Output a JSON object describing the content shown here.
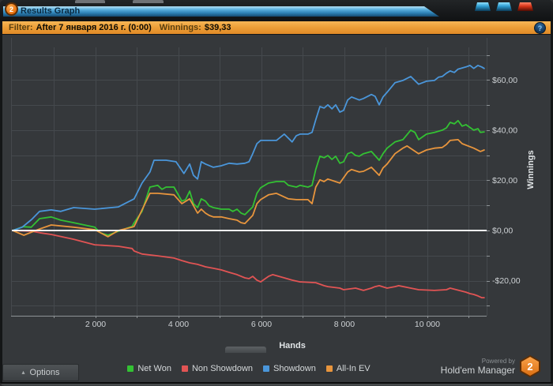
{
  "window": {
    "title": "Results Graph",
    "badge": "2",
    "controls": [
      "minimize-button",
      "maximize-button",
      "close-button"
    ]
  },
  "filter_bar": {
    "filter_label": "Filter:",
    "filter_value": "After 7 января 2016 г. (0:00)",
    "winnings_label": "Winnings:",
    "winnings_value": "$39,33",
    "info_glyph": "?"
  },
  "footer": {
    "options_arrow": "▴",
    "options_label": "Options",
    "powered_by": "Powered by",
    "brand": "Hold'em Manager",
    "brand_badge": "2"
  },
  "colors": {
    "net_won": "#33c133",
    "non_showdown": "#e15454",
    "showdown": "#4a96da",
    "all_in_ev": "#e8953d",
    "zero_line": "#f5f6f6",
    "grid": "#45494d",
    "axis": "#8e9396",
    "tick_text": "#cdd1d4",
    "axis_title": "#e0e4e6",
    "chart_bg": "#35383b",
    "filter_bar_bg": "#eda039",
    "title_bar_blue": "#2e82b6"
  },
  "chart_data": {
    "type": "line",
    "title": "",
    "xlabel": "Hands",
    "ylabel": "Winnings",
    "xlim": [
      0,
      11430
    ],
    "ylim": [
      -34,
      73
    ],
    "grid": {
      "x_step": 1000,
      "y_step": 10
    },
    "zero_line": true,
    "legend_position": "bottom",
    "x_ticks": [
      {
        "value": 2000,
        "label": "2 000"
      },
      {
        "value": 4000,
        "label": "4 000"
      },
      {
        "value": 6000,
        "label": "6 000"
      },
      {
        "value": 8000,
        "label": "8 000"
      },
      {
        "value": 10000,
        "label": "10 000"
      }
    ],
    "y_ticks": [
      {
        "value": 60,
        "label": "$60,00"
      },
      {
        "value": 40,
        "label": "$40,00"
      },
      {
        "value": 20,
        "label": "$20,00"
      },
      {
        "value": 0,
        "label": "$0,00"
      },
      {
        "value": -20,
        "label": "-$20,00"
      }
    ],
    "series": [
      {
        "name": "Net Won",
        "color": "#33c133",
        "points": [
          [
            0,
            0
          ],
          [
            250,
            1.5
          ],
          [
            450,
            1.3
          ],
          [
            650,
            4.7
          ],
          [
            930,
            5.4
          ],
          [
            1160,
            4.1
          ],
          [
            1470,
            3.1
          ],
          [
            1730,
            2.2
          ],
          [
            1980,
            1.3
          ],
          [
            2110,
            -0.9
          ],
          [
            2300,
            -1.9
          ],
          [
            2550,
            -0.3
          ],
          [
            2880,
            1.6
          ],
          [
            2930,
            3.1
          ],
          [
            3120,
            7.6
          ],
          [
            3310,
            17.3
          ],
          [
            3500,
            18
          ],
          [
            3600,
            16.4
          ],
          [
            3700,
            17.3
          ],
          [
            3890,
            17.3
          ],
          [
            4080,
            11.7
          ],
          [
            4170,
            12.3
          ],
          [
            4270,
            15.7
          ],
          [
            4360,
            10.7
          ],
          [
            4460,
            9.1
          ],
          [
            4550,
            12.6
          ],
          [
            4650,
            11.7
          ],
          [
            4740,
            9.8
          ],
          [
            4840,
            9.1
          ],
          [
            5030,
            8.5
          ],
          [
            5220,
            8.5
          ],
          [
            5310,
            7.6
          ],
          [
            5410,
            8.5
          ],
          [
            5510,
            6.9
          ],
          [
            5600,
            6.3
          ],
          [
            5790,
            9.4
          ],
          [
            5890,
            14.8
          ],
          [
            5980,
            17
          ],
          [
            6170,
            18.9
          ],
          [
            6360,
            19.5
          ],
          [
            6550,
            19.5
          ],
          [
            6650,
            18
          ],
          [
            6840,
            17.3
          ],
          [
            6930,
            18
          ],
          [
            7120,
            17.3
          ],
          [
            7220,
            18
          ],
          [
            7310,
            24.3
          ],
          [
            7410,
            29.6
          ],
          [
            7510,
            29
          ],
          [
            7600,
            29.9
          ],
          [
            7700,
            28.3
          ],
          [
            7790,
            29.6
          ],
          [
            7890,
            26.8
          ],
          [
            7980,
            27.4
          ],
          [
            8080,
            30.6
          ],
          [
            8170,
            31.2
          ],
          [
            8270,
            29.9
          ],
          [
            8360,
            29.6
          ],
          [
            8460,
            30.6
          ],
          [
            8650,
            31.5
          ],
          [
            8840,
            28
          ],
          [
            8930,
            30.6
          ],
          [
            9030,
            32.8
          ],
          [
            9220,
            35.3
          ],
          [
            9410,
            36.2
          ],
          [
            9600,
            40
          ],
          [
            9700,
            39.1
          ],
          [
            9790,
            36.2
          ],
          [
            9980,
            38.4
          ],
          [
            10170,
            39.1
          ],
          [
            10360,
            40
          ],
          [
            10460,
            40.9
          ],
          [
            10550,
            43.1
          ],
          [
            10650,
            42.5
          ],
          [
            10740,
            43.8
          ],
          [
            10840,
            41.6
          ],
          [
            10930,
            42.2
          ],
          [
            11120,
            40
          ],
          [
            11220,
            40.6
          ],
          [
            11280,
            39.1
          ],
          [
            11370,
            39.3
          ]
        ]
      },
      {
        "name": "Non Showdown",
        "color": "#e15454",
        "points": [
          [
            0,
            0
          ],
          [
            460,
            -0.3
          ],
          [
            650,
            -0.9
          ],
          [
            930,
            -1.6
          ],
          [
            1470,
            -3.5
          ],
          [
            1980,
            -5.7
          ],
          [
            2550,
            -6.3
          ],
          [
            2880,
            -7.2
          ],
          [
            2930,
            -8.2
          ],
          [
            3120,
            -9.4
          ],
          [
            3500,
            -10.1
          ],
          [
            3890,
            -11
          ],
          [
            4080,
            -12
          ],
          [
            4270,
            -12.9
          ],
          [
            4460,
            -13.5
          ],
          [
            4650,
            -14.5
          ],
          [
            4840,
            -15.1
          ],
          [
            5030,
            -15.7
          ],
          [
            5220,
            -16.7
          ],
          [
            5410,
            -17.6
          ],
          [
            5600,
            -18.9
          ],
          [
            5700,
            -19.2
          ],
          [
            5790,
            -18.3
          ],
          [
            5890,
            -19.8
          ],
          [
            5980,
            -20.5
          ],
          [
            6170,
            -18.3
          ],
          [
            6270,
            -17.6
          ],
          [
            6550,
            -18.9
          ],
          [
            6740,
            -19.8
          ],
          [
            6930,
            -20.5
          ],
          [
            7310,
            -20.8
          ],
          [
            7510,
            -22
          ],
          [
            7600,
            -22.4
          ],
          [
            7890,
            -23
          ],
          [
            7980,
            -23.6
          ],
          [
            8270,
            -23
          ],
          [
            8460,
            -23.9
          ],
          [
            8650,
            -23
          ],
          [
            8740,
            -22.4
          ],
          [
            8840,
            -22
          ],
          [
            9030,
            -23
          ],
          [
            9220,
            -22.4
          ],
          [
            9310,
            -22
          ],
          [
            9600,
            -23
          ],
          [
            9790,
            -23.6
          ],
          [
            10170,
            -23.9
          ],
          [
            10460,
            -23.6
          ],
          [
            10550,
            -23
          ],
          [
            10930,
            -24.6
          ],
          [
            11030,
            -25.2
          ],
          [
            11120,
            -25.5
          ],
          [
            11220,
            -26.1
          ],
          [
            11310,
            -26.8
          ],
          [
            11370,
            -26.8
          ]
        ]
      },
      {
        "name": "Showdown",
        "color": "#4a96da",
        "points": [
          [
            0,
            0
          ],
          [
            230,
            1.3
          ],
          [
            460,
            4.4
          ],
          [
            650,
            7.6
          ],
          [
            930,
            8.2
          ],
          [
            1160,
            7.6
          ],
          [
            1470,
            9.1
          ],
          [
            1980,
            8.5
          ],
          [
            2550,
            9.4
          ],
          [
            2930,
            12.6
          ],
          [
            3120,
            18.9
          ],
          [
            3310,
            23.3
          ],
          [
            3410,
            28
          ],
          [
            3700,
            28
          ],
          [
            3940,
            27.4
          ],
          [
            4130,
            22.7
          ],
          [
            4270,
            26.5
          ],
          [
            4360,
            22
          ],
          [
            4460,
            20.5
          ],
          [
            4550,
            27.4
          ],
          [
            4650,
            26.5
          ],
          [
            4840,
            25.2
          ],
          [
            5030,
            25.8
          ],
          [
            5220,
            26.8
          ],
          [
            5410,
            26.5
          ],
          [
            5600,
            26.8
          ],
          [
            5700,
            27.4
          ],
          [
            5790,
            30.6
          ],
          [
            5890,
            34.6
          ],
          [
            5980,
            35.9
          ],
          [
            6360,
            35.9
          ],
          [
            6550,
            38.4
          ],
          [
            6740,
            35.3
          ],
          [
            6840,
            37.8
          ],
          [
            6930,
            38.4
          ],
          [
            7120,
            38.4
          ],
          [
            7220,
            39.1
          ],
          [
            7310,
            44.1
          ],
          [
            7410,
            49.4
          ],
          [
            7510,
            48.8
          ],
          [
            7600,
            50.1
          ],
          [
            7700,
            48.5
          ],
          [
            7790,
            50.1
          ],
          [
            7890,
            47.2
          ],
          [
            7980,
            47.9
          ],
          [
            8080,
            52
          ],
          [
            8170,
            53.2
          ],
          [
            8270,
            52.6
          ],
          [
            8360,
            52
          ],
          [
            8460,
            52.6
          ],
          [
            8650,
            54.2
          ],
          [
            8740,
            53.5
          ],
          [
            8840,
            50.1
          ],
          [
            8930,
            53.2
          ],
          [
            9030,
            55.1
          ],
          [
            9220,
            58.9
          ],
          [
            9410,
            59.8
          ],
          [
            9600,
            61.4
          ],
          [
            9790,
            58.3
          ],
          [
            9980,
            59.5
          ],
          [
            10170,
            59.8
          ],
          [
            10270,
            61.1
          ],
          [
            10360,
            61.4
          ],
          [
            10460,
            62.7
          ],
          [
            10550,
            63.6
          ],
          [
            10650,
            63
          ],
          [
            10740,
            64.3
          ],
          [
            10930,
            65.2
          ],
          [
            11030,
            65.8
          ],
          [
            11120,
            64.6
          ],
          [
            11220,
            65.8
          ],
          [
            11310,
            65.2
          ],
          [
            11370,
            64.6
          ]
        ]
      },
      {
        "name": "All-In EV",
        "color": "#e8953d",
        "points": [
          [
            0,
            0
          ],
          [
            270,
            -1.9
          ],
          [
            650,
            0.6
          ],
          [
            930,
            2.2
          ],
          [
            1470,
            1.3
          ],
          [
            1980,
            0.3
          ],
          [
            2300,
            -2.5
          ],
          [
            2550,
            0
          ],
          [
            2880,
            1.3
          ],
          [
            2930,
            1.6
          ],
          [
            3310,
            14.8
          ],
          [
            3500,
            14.8
          ],
          [
            3890,
            14.2
          ],
          [
            4080,
            10.7
          ],
          [
            4270,
            12.6
          ],
          [
            4460,
            6.9
          ],
          [
            4550,
            8.5
          ],
          [
            4650,
            6.9
          ],
          [
            4740,
            6
          ],
          [
            4840,
            5.4
          ],
          [
            5030,
            5.4
          ],
          [
            5220,
            4.7
          ],
          [
            5410,
            4.1
          ],
          [
            5510,
            3.1
          ],
          [
            5600,
            2.8
          ],
          [
            5790,
            6
          ],
          [
            5890,
            10.7
          ],
          [
            5980,
            12.3
          ],
          [
            6170,
            14.2
          ],
          [
            6360,
            14.8
          ],
          [
            6650,
            12.6
          ],
          [
            6840,
            12.3
          ],
          [
            7120,
            12.3
          ],
          [
            7220,
            10.7
          ],
          [
            7310,
            17.3
          ],
          [
            7410,
            20.2
          ],
          [
            7510,
            19.5
          ],
          [
            7600,
            20.5
          ],
          [
            7890,
            18.9
          ],
          [
            8080,
            23.3
          ],
          [
            8170,
            24.3
          ],
          [
            8360,
            23.3
          ],
          [
            8460,
            23.6
          ],
          [
            8650,
            25.2
          ],
          [
            8840,
            22
          ],
          [
            8930,
            24.9
          ],
          [
            9030,
            26.5
          ],
          [
            9220,
            30.6
          ],
          [
            9410,
            32.8
          ],
          [
            9510,
            33.7
          ],
          [
            9790,
            30.6
          ],
          [
            9980,
            32.1
          ],
          [
            10170,
            32.8
          ],
          [
            10360,
            33.1
          ],
          [
            10460,
            34.3
          ],
          [
            10550,
            35.9
          ],
          [
            10740,
            36.2
          ],
          [
            10840,
            34.6
          ],
          [
            11120,
            32.8
          ],
          [
            11280,
            31.5
          ],
          [
            11370,
            32.1
          ]
        ]
      }
    ]
  }
}
